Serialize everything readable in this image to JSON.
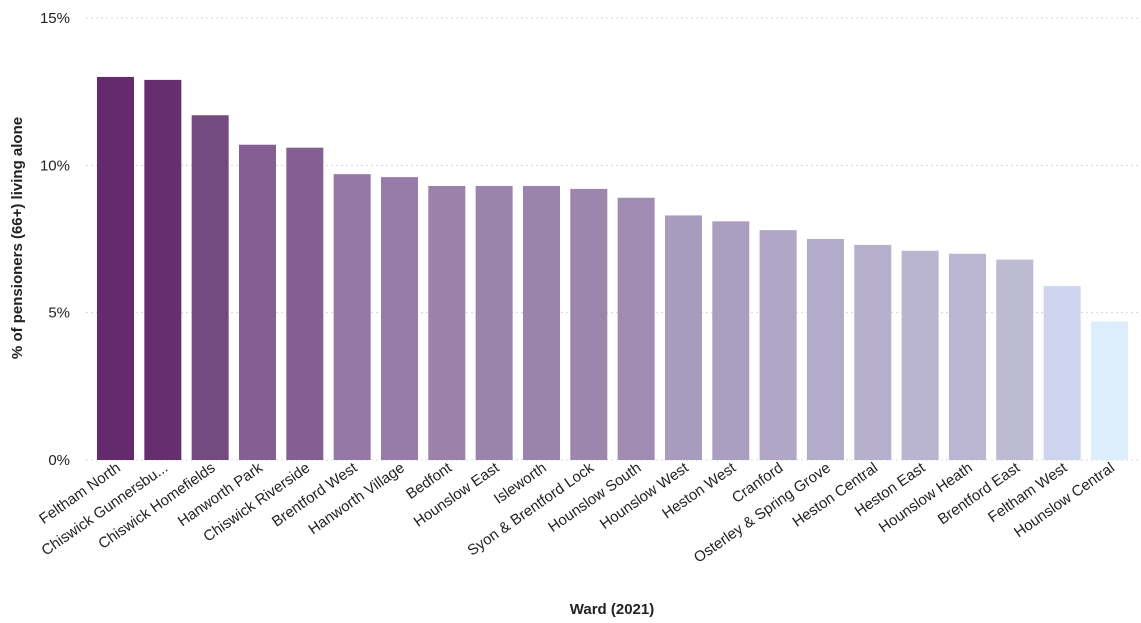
{
  "chart_data": {
    "type": "bar",
    "title": "",
    "xlabel": "Ward (2021)",
    "ylabel": "% of pensioners (66+) living alone",
    "ylim": [
      0,
      15
    ],
    "yticks": [
      0,
      5,
      10,
      15
    ],
    "ytick_labels": [
      "0%",
      "5%",
      "10%",
      "15%"
    ],
    "grid": "horizontal-dotted",
    "legend": "none",
    "categories": [
      "Feltham North",
      "Chiswick Gunnersbu...",
      "Chiswick Homefields",
      "Hanworth Park",
      "Chiswick Riverside",
      "Brentford West",
      "Hanworth Village",
      "Bedfont",
      "Hounslow East",
      "Isleworth",
      "Syon & Brentford Lock",
      "Hounslow South",
      "Hounslow West",
      "Heston West",
      "Cranford",
      "Osterley & Spring Grove",
      "Heston Central",
      "Heston East",
      "Hounslow Heath",
      "Brentford East",
      "Feltham West",
      "Hounslow Central"
    ],
    "values": [
      13.0,
      12.9,
      11.7,
      10.7,
      10.6,
      9.7,
      9.6,
      9.3,
      9.3,
      9.3,
      9.2,
      8.9,
      8.3,
      8.1,
      7.8,
      7.5,
      7.3,
      7.1,
      7.0,
      6.8,
      5.9,
      4.7
    ],
    "colors": [
      "#652a6d",
      "#672e6f",
      "#754a80",
      "#845f92",
      "#846092",
      "#9578a6",
      "#977ba8",
      "#9a82ab",
      "#9a83ac",
      "#9a83ac",
      "#9c86ae",
      "#a08cb2",
      "#a99bbe",
      "#ab9fc1",
      "#b0a6c6",
      "#b3abca",
      "#b7b0cd",
      "#b9b4cf",
      "#bab5d0",
      "#bdbad3",
      "#ced3ee",
      "#ddedfc"
    ]
  }
}
